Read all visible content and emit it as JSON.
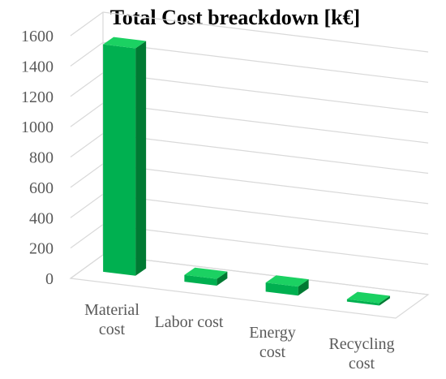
{
  "chart_data": {
    "type": "bar",
    "title": "Total Cost breackdown [k€]",
    "categories": [
      [
        "Material",
        "cost"
      ],
      [
        "Labor cost"
      ],
      [
        "Energy",
        "cost"
      ],
      [
        "Recycling",
        "cost"
      ]
    ],
    "values": [
      1500,
      45,
      60,
      10
    ],
    "ylim": [
      0,
      1600
    ],
    "yticks": [
      0,
      200,
      400,
      600,
      800,
      1000,
      1200,
      1400,
      1600
    ],
    "grid": true,
    "legend": "none",
    "colors": {
      "front": "#00b050",
      "side": "#007a33",
      "top": "#1bd162",
      "grid": "#d9d9d9",
      "text": "#595959"
    }
  }
}
